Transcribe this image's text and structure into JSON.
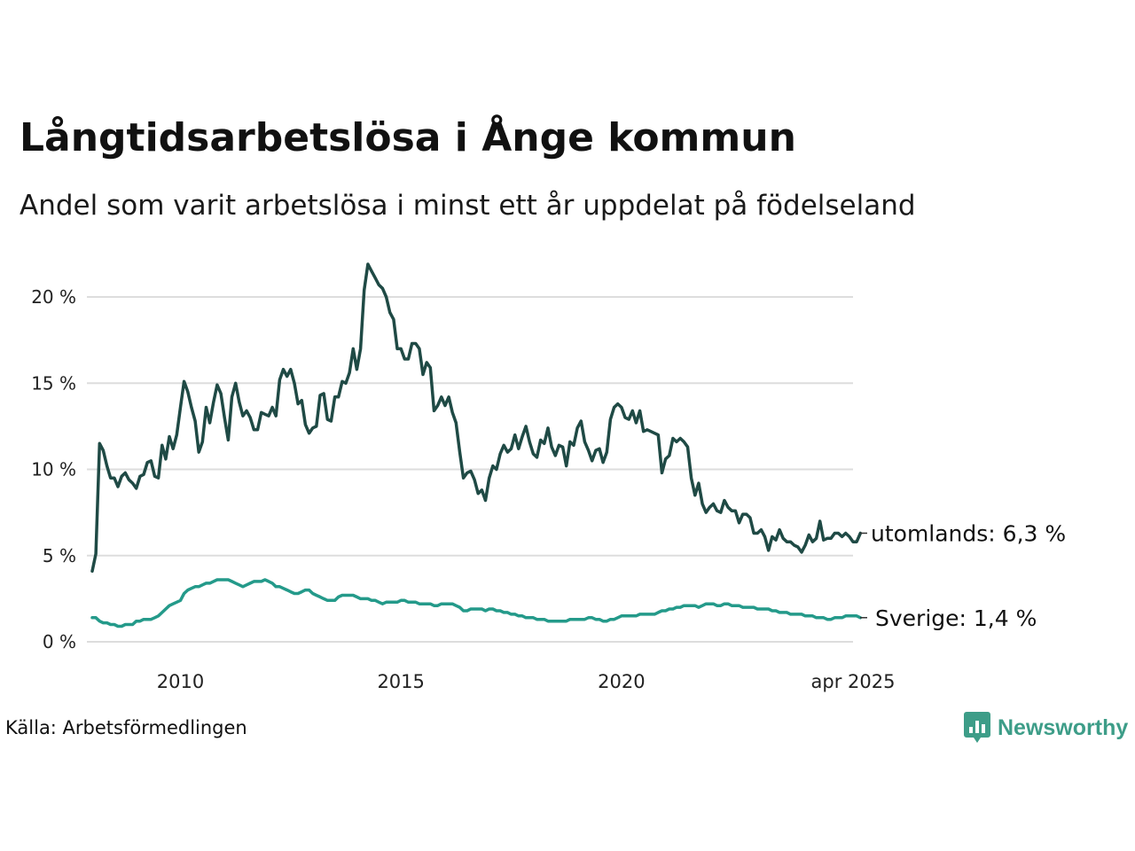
{
  "header": {
    "title": "Långtidsarbetslösa i Ånge kommun",
    "subtitle": "Andel som varit arbetslösa i minst ett år uppdelat på födelseland"
  },
  "footer": {
    "source": "Källa: Arbetsförmedlingen",
    "brand": "Newsworthy",
    "brand_icon": "bar-chart-speech-bubble-icon"
  },
  "colors": {
    "utomlands": "#1f4a45",
    "sverige": "#249a8a",
    "grid": "#dddddd",
    "brand": "#3d9d88"
  },
  "chart_data": {
    "type": "line",
    "title": "Långtidsarbetslösa i Ånge kommun",
    "subtitle": "Andel som varit arbetslösa i minst ett år uppdelat på födelseland",
    "xlabel": "",
    "ylabel": "",
    "x_start": "2008-01",
    "x_end": "2025-04",
    "x_step": "month",
    "xlim": [
      "2008-01",
      "2025-04"
    ],
    "ylim": [
      0,
      22
    ],
    "y_ticks": [
      0,
      5,
      10,
      15,
      20
    ],
    "y_tick_labels": [
      "0 %",
      "5 %",
      "10 %",
      "15 %",
      "20 %"
    ],
    "x_ticks": [
      "2010-01",
      "2015-01",
      "2020-01",
      "2025-04"
    ],
    "x_tick_labels": [
      "2010",
      "2015",
      "2020",
      "apr 2025"
    ],
    "grid": "horizontal",
    "legend": "direct-labels-right",
    "series": [
      {
        "name": "utomlands",
        "end_label": "utomlands: 6,3 %",
        "values": [
          4.1,
          5.1,
          11.5,
          11.1,
          10.2,
          9.5,
          9.5,
          9.0,
          9.6,
          9.8,
          9.4,
          9.2,
          8.9,
          9.6,
          9.7,
          10.4,
          10.5,
          9.6,
          9.5,
          11.4,
          10.6,
          11.9,
          11.2,
          12.0,
          13.6,
          15.1,
          14.5,
          13.6,
          12.8,
          11.0,
          11.6,
          13.6,
          12.7,
          13.9,
          14.9,
          14.4,
          13.0,
          11.7,
          14.2,
          15.0,
          13.9,
          13.1,
          13.4,
          13.0,
          12.3,
          12.3,
          13.3,
          13.2,
          13.1,
          13.6,
          13.1,
          15.2,
          15.8,
          15.4,
          15.8,
          15.0,
          13.8,
          14.0,
          12.6,
          12.1,
          12.4,
          12.5,
          14.3,
          14.4,
          12.9,
          12.8,
          14.2,
          14.2,
          15.1,
          15.0,
          15.6,
          17.0,
          15.8,
          17.0,
          20.4,
          21.9,
          21.5,
          21.1,
          20.7,
          20.5,
          20.0,
          19.1,
          18.7,
          17.0,
          17.0,
          16.4,
          16.4,
          17.3,
          17.3,
          17.0,
          15.5,
          16.2,
          15.9,
          13.4,
          13.7,
          14.2,
          13.7,
          14.2,
          13.3,
          12.7,
          11.0,
          9.5,
          9.8,
          9.9,
          9.4,
          8.6,
          8.8,
          8.2,
          9.5,
          10.2,
          10.0,
          10.9,
          11.4,
          11.0,
          11.2,
          12.0,
          11.2,
          11.9,
          12.5,
          11.6,
          10.9,
          10.7,
          11.7,
          11.5,
          12.4,
          11.3,
          10.8,
          11.4,
          11.3,
          10.2,
          11.6,
          11.4,
          12.4,
          12.8,
          11.6,
          11.1,
          10.5,
          11.1,
          11.2,
          10.4,
          11.0,
          12.9,
          13.6,
          13.8,
          13.6,
          13.0,
          12.9,
          13.4,
          12.7,
          13.4,
          12.2,
          12.3,
          12.2,
          12.1,
          12.0,
          9.8,
          10.6,
          10.8,
          11.8,
          11.6,
          11.8,
          11.6,
          11.3,
          9.5,
          8.5,
          9.2,
          8.0,
          7.5,
          7.8,
          8.0,
          7.6,
          7.5,
          8.2,
          7.8,
          7.6,
          7.6,
          6.9,
          7.4,
          7.4,
          7.2,
          6.3,
          6.3,
          6.5,
          6.1,
          5.3,
          6.1,
          5.9,
          6.5,
          6.0,
          5.8,
          5.8,
          5.6,
          5.5,
          5.2,
          5.6,
          6.2,
          5.8,
          6.0,
          7.0,
          5.9,
          6.0,
          6.0,
          6.3,
          6.3,
          6.1,
          6.3,
          6.1,
          5.8,
          5.8,
          6.3
        ]
      },
      {
        "name": "Sverige",
        "end_label": "Sverige: 1,4 %",
        "values": [
          1.4,
          1.4,
          1.2,
          1.1,
          1.1,
          1.0,
          1.0,
          0.9,
          0.9,
          1.0,
          1.0,
          1.0,
          1.2,
          1.2,
          1.3,
          1.3,
          1.3,
          1.4,
          1.5,
          1.7,
          1.9,
          2.1,
          2.2,
          2.3,
          2.4,
          2.8,
          3.0,
          3.1,
          3.2,
          3.2,
          3.3,
          3.4,
          3.4,
          3.5,
          3.6,
          3.6,
          3.6,
          3.6,
          3.5,
          3.4,
          3.3,
          3.2,
          3.3,
          3.4,
          3.5,
          3.5,
          3.5,
          3.6,
          3.5,
          3.4,
          3.2,
          3.2,
          3.1,
          3.0,
          2.9,
          2.8,
          2.8,
          2.9,
          3.0,
          3.0,
          2.8,
          2.7,
          2.6,
          2.5,
          2.4,
          2.4,
          2.4,
          2.6,
          2.7,
          2.7,
          2.7,
          2.7,
          2.6,
          2.5,
          2.5,
          2.5,
          2.4,
          2.4,
          2.3,
          2.2,
          2.3,
          2.3,
          2.3,
          2.3,
          2.4,
          2.4,
          2.3,
          2.3,
          2.3,
          2.2,
          2.2,
          2.2,
          2.2,
          2.1,
          2.1,
          2.2,
          2.2,
          2.2,
          2.2,
          2.1,
          2.0,
          1.8,
          1.8,
          1.9,
          1.9,
          1.9,
          1.9,
          1.8,
          1.9,
          1.9,
          1.8,
          1.8,
          1.7,
          1.7,
          1.6,
          1.6,
          1.5,
          1.5,
          1.4,
          1.4,
          1.4,
          1.3,
          1.3,
          1.3,
          1.2,
          1.2,
          1.2,
          1.2,
          1.2,
          1.2,
          1.3,
          1.3,
          1.3,
          1.3,
          1.3,
          1.4,
          1.4,
          1.3,
          1.3,
          1.2,
          1.2,
          1.3,
          1.3,
          1.4,
          1.5,
          1.5,
          1.5,
          1.5,
          1.5,
          1.6,
          1.6,
          1.6,
          1.6,
          1.6,
          1.7,
          1.8,
          1.8,
          1.9,
          1.9,
          2.0,
          2.0,
          2.1,
          2.1,
          2.1,
          2.1,
          2.0,
          2.1,
          2.2,
          2.2,
          2.2,
          2.1,
          2.1,
          2.2,
          2.2,
          2.1,
          2.1,
          2.1,
          2.0,
          2.0,
          2.0,
          2.0,
          1.9,
          1.9,
          1.9,
          1.9,
          1.8,
          1.8,
          1.7,
          1.7,
          1.7,
          1.6,
          1.6,
          1.6,
          1.6,
          1.5,
          1.5,
          1.5,
          1.4,
          1.4,
          1.4,
          1.3,
          1.3,
          1.4,
          1.4,
          1.4,
          1.5,
          1.5,
          1.5,
          1.5,
          1.4
        ]
      }
    ]
  }
}
